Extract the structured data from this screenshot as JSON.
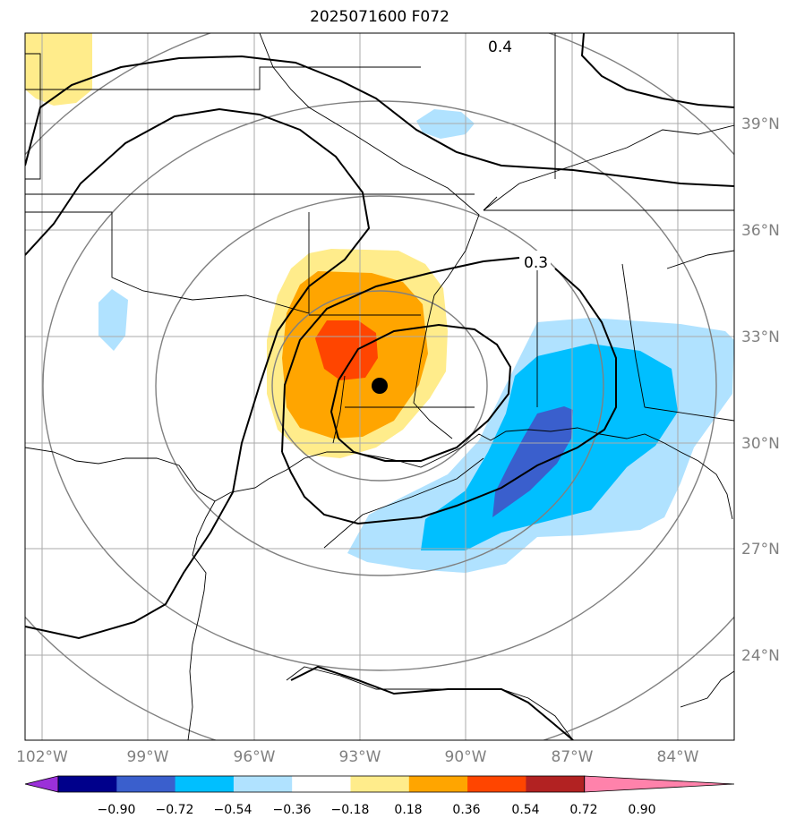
{
  "title": "2025071600 F072",
  "map": {
    "lon_labels": [
      "102°W",
      "99°W",
      "96°W",
      "93°W",
      "90°W",
      "87°W",
      "84°W"
    ],
    "lat_labels": [
      "39°N",
      "36°N",
      "33°N",
      "30°N",
      "27°N",
      "24°N"
    ],
    "contour_labels": [
      "0.4",
      "0.3"
    ],
    "storm_marker": {
      "lon": -92.3,
      "lat": 31.6
    }
  },
  "colorbar": {
    "tick_labels": [
      "−0.90",
      "−0.72",
      "−0.54",
      "−0.36",
      "−0.18",
      "0.18",
      "0.36",
      "0.54",
      "0.72",
      "0.90"
    ],
    "colors": [
      "#9b30d9",
      "#00008b",
      "#3a5fcd",
      "#00bfff",
      "#b0e2ff",
      "#ffffff",
      "#ffec8b",
      "#ffa500",
      "#ff4500",
      "#b22222",
      "#ff82ab"
    ]
  }
}
